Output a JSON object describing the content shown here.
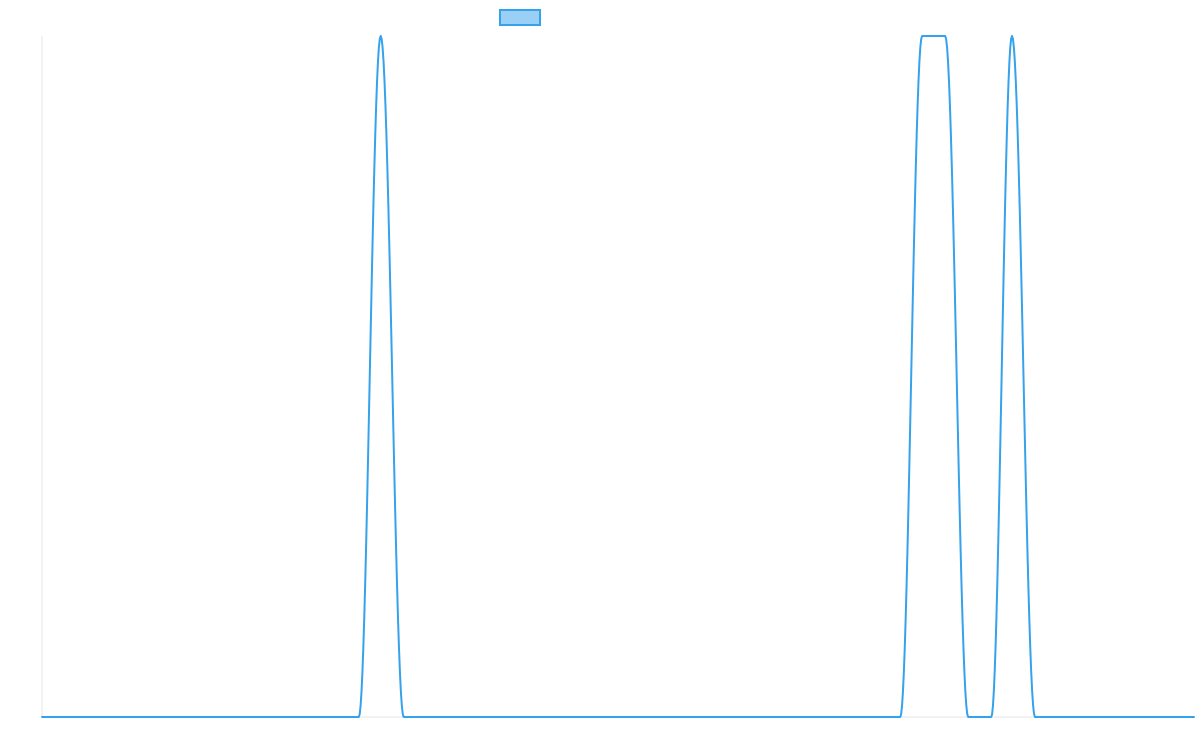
{
  "chart_data": {
    "type": "line",
    "title": "",
    "xlabel": "",
    "ylabel": "",
    "legend": {
      "placement": "top-center",
      "items": [
        {
          "name": "",
          "swatch_fill": "#9ad0f5",
          "swatch_stroke": "#36a2eb"
        }
      ]
    },
    "grid": false,
    "xlim": [
      0,
      50
    ],
    "ylim": [
      0,
      1
    ],
    "series": [
      {
        "color": "#36a2eb",
        "points": [
          [
            0,
            0
          ],
          [
            13.75,
            0
          ],
          [
            14.7,
            1
          ],
          [
            15.7,
            0
          ],
          [
            37.25,
            0
          ],
          [
            38.2,
            1
          ],
          [
            39.2,
            1
          ],
          [
            40.2,
            0
          ],
          [
            41.2,
            0
          ],
          [
            42.1,
            1
          ],
          [
            43.1,
            0
          ],
          [
            50,
            0
          ]
        ]
      }
    ]
  }
}
